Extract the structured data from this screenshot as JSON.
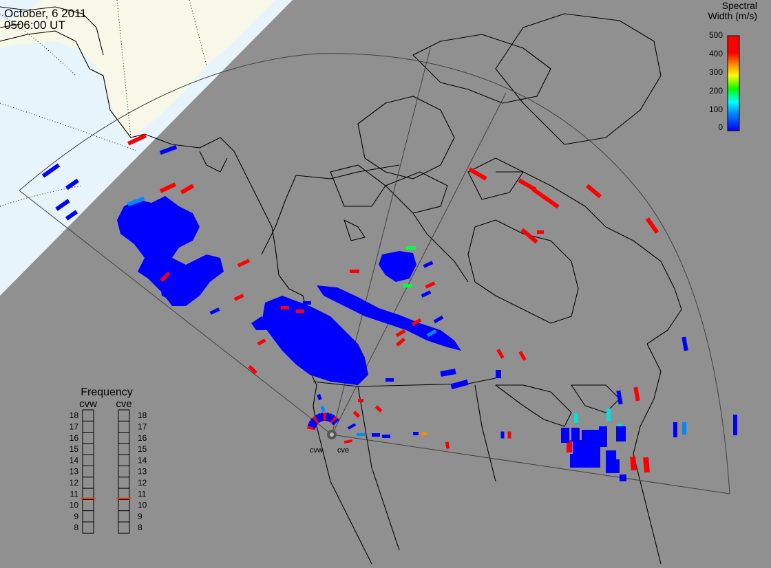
{
  "header": {
    "date": "October, 6 2011",
    "time": "0506:00 UT"
  },
  "legend": {
    "title_line1": "Spectral",
    "title_line2": "Width (m/s)",
    "ticks": [
      "500",
      "400",
      "300",
      "200",
      "100",
      "0"
    ],
    "min_value": 0,
    "max_value": 500,
    "colors": [
      "#0000ff",
      "#0088ff",
      "#00ffff",
      "#00ff00",
      "#ffff00",
      "#ff8800",
      "#ff0000"
    ]
  },
  "frequency_panel": {
    "title": "Frequency",
    "radars": [
      {
        "name": "cvw",
        "current_mhz": 10.6
      },
      {
        "name": "cve",
        "current_mhz": 10.6
      }
    ],
    "levels": [
      "18",
      "17",
      "16",
      "15",
      "14",
      "13",
      "12",
      "11",
      "10",
      "9",
      "8"
    ],
    "indicator_color": "#ff3000"
  },
  "sites": {
    "west_label": "cvw",
    "east_label": "cve"
  },
  "colors": {
    "background": "#909090",
    "night_side": "#e8f4fc",
    "land_day": "#f8f8e8",
    "coastline": "#000000",
    "fov": "#404040"
  }
}
